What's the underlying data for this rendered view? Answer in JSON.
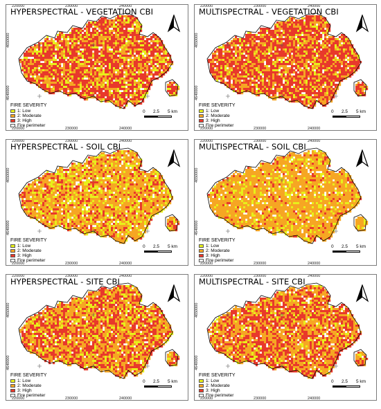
{
  "panels": [
    {
      "title": "HYPERSPECTRAL - VEGETATION CBI",
      "scheme": "veg_hyper"
    },
    {
      "title": "MULTISPECTRAL - VEGETATION CBI",
      "scheme": "veg_multi"
    },
    {
      "title": "HYPERSPECTRAL - SOIL CBI",
      "scheme": "soil_hyper"
    },
    {
      "title": "MULTISPECTRAL - SOIL CBI",
      "scheme": "soil_multi"
    },
    {
      "title": "HYPERSPECTRAL - SITE CBI",
      "scheme": "site_hyper"
    },
    {
      "title": "MULTISPECTRAL - SITE CBI",
      "scheme": "site_multi"
    }
  ],
  "x_ticks": [
    "220000",
    "230000",
    "240000"
  ],
  "y_ticks": [
    "4650000",
    "4640000"
  ],
  "legend": {
    "title": "FIRE SEVERITY",
    "items": [
      {
        "label": "1: Low",
        "color": "#e8f01a"
      },
      {
        "label": "2: Moderate",
        "color": "#f6a623"
      },
      {
        "label": "3: High",
        "color": "#e8392b"
      },
      {
        "label": "Fire perimeter",
        "color": "#ffffff"
      }
    ]
  },
  "scale_bar": {
    "labels": [
      "0",
      "2.5",
      "5 km"
    ]
  },
  "mix": {
    "veg_hyper": [
      0.15,
      0.3,
      0.55
    ],
    "veg_multi": [
      0.1,
      0.3,
      0.6
    ],
    "soil_hyper": [
      0.2,
      0.6,
      0.2
    ],
    "soil_multi": [
      0.15,
      0.75,
      0.1
    ],
    "site_hyper": [
      0.15,
      0.45,
      0.4
    ],
    "site_multi": [
      0.1,
      0.45,
      0.45
    ]
  }
}
